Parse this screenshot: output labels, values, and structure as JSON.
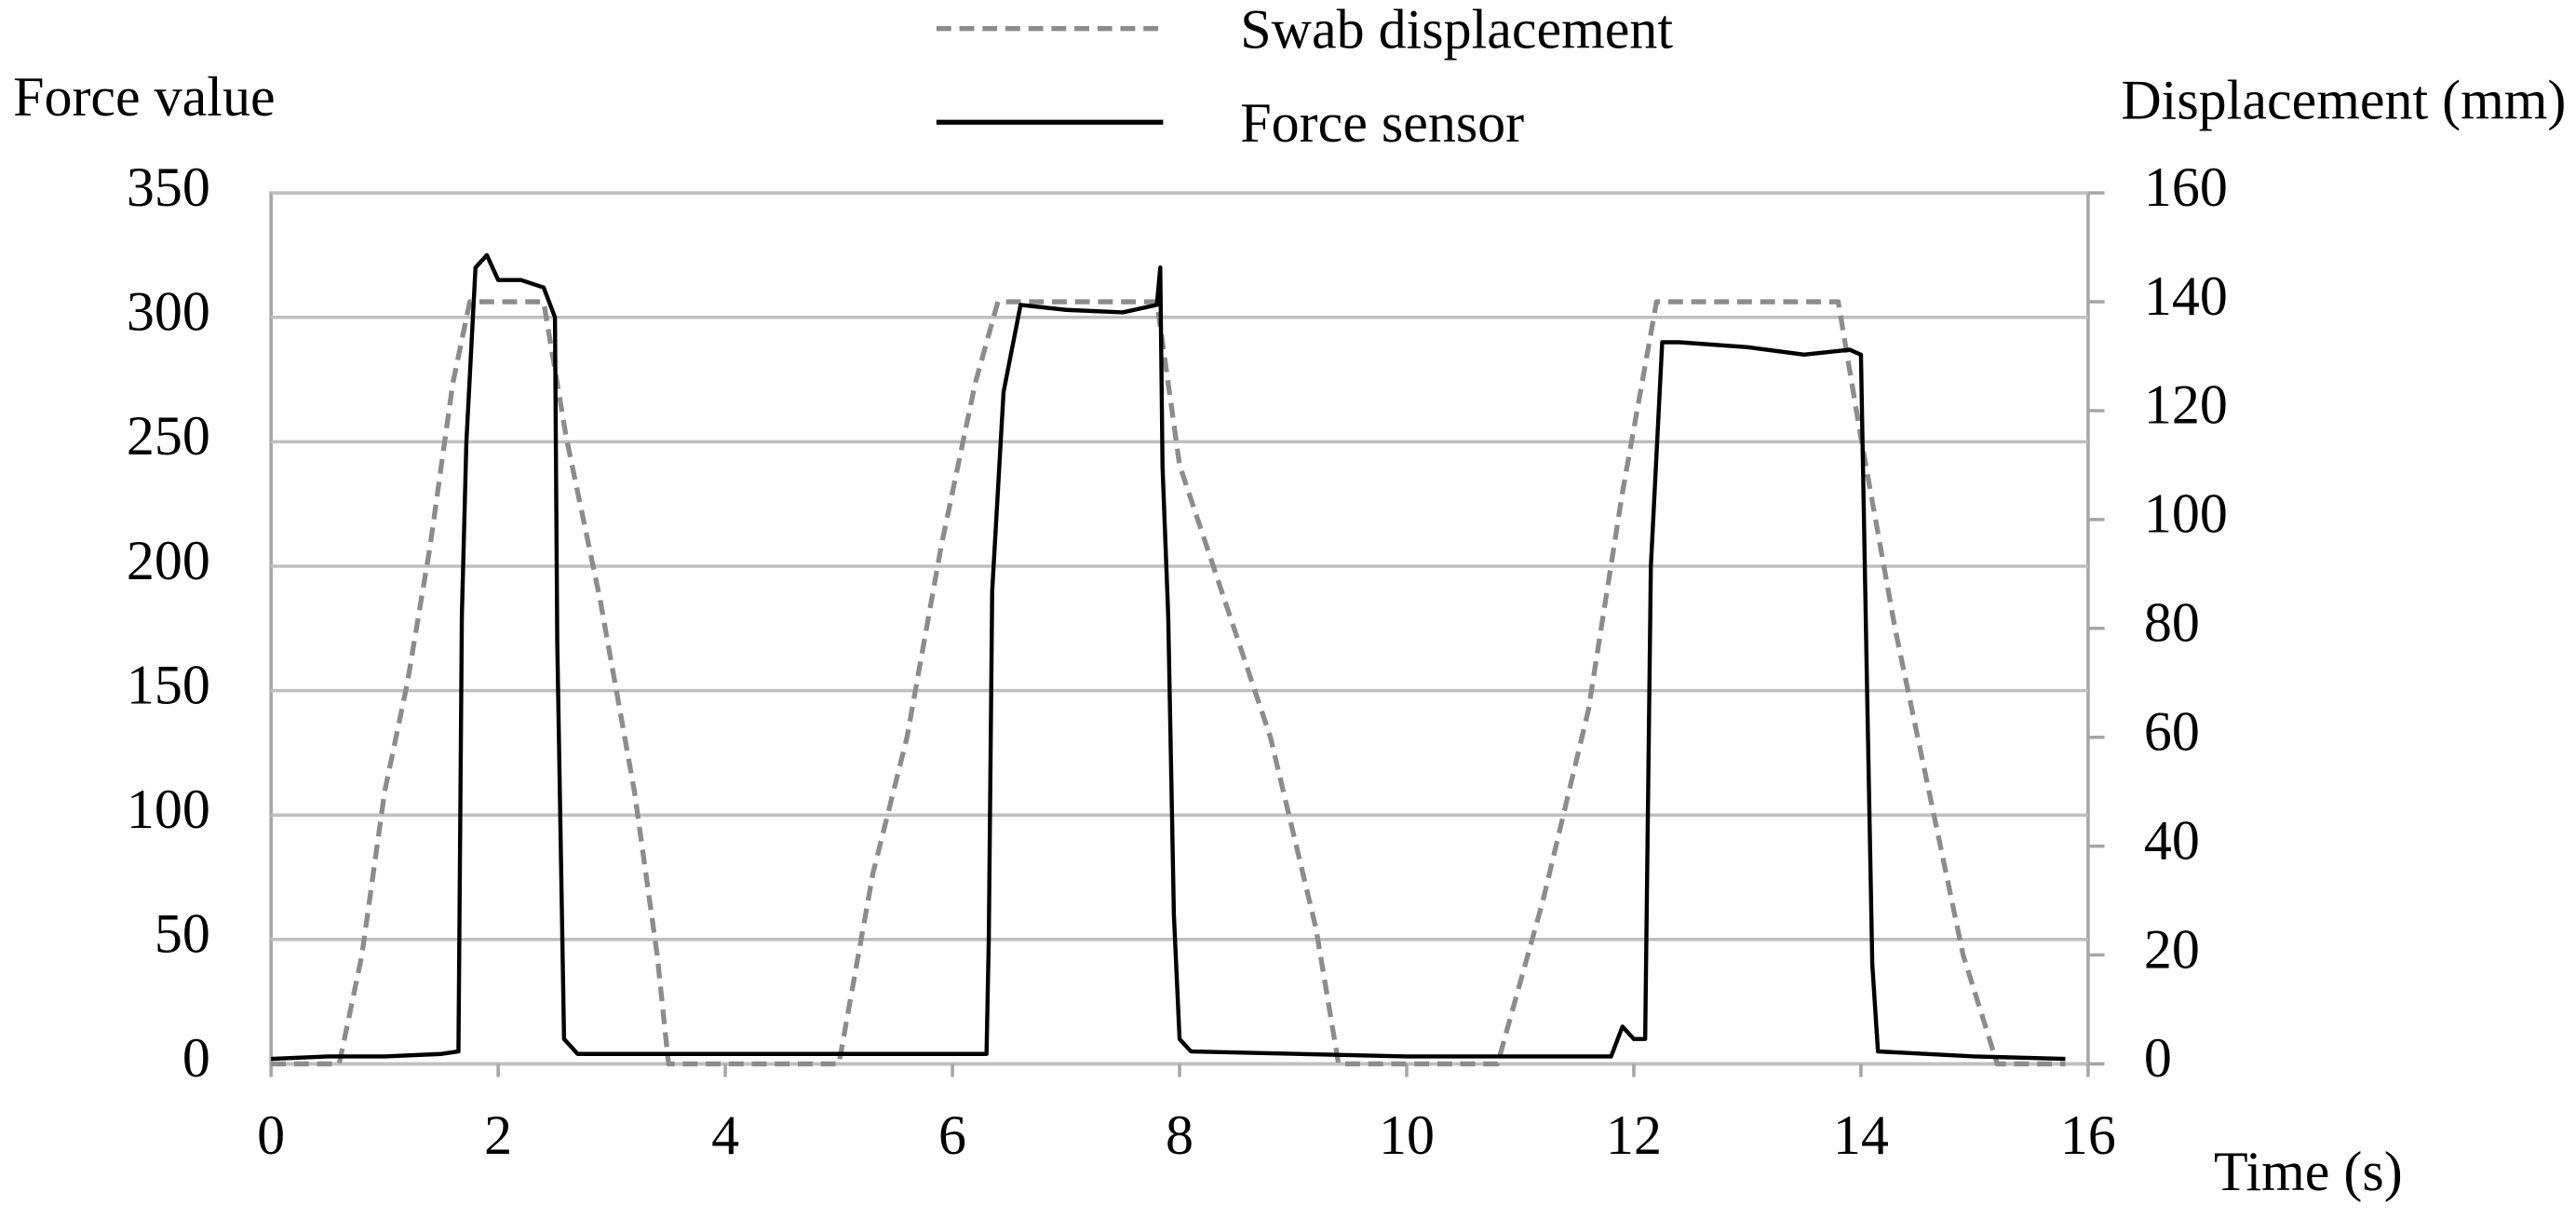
{
  "chart_data": {
    "type": "line",
    "x_label": "Time (s)",
    "y_label": "Force value",
    "y2_label": "Displacement (mm)",
    "xlim": [
      0,
      16
    ],
    "xticks": [
      0,
      2,
      4,
      6,
      8,
      10,
      12,
      14,
      16
    ],
    "ylim": [
      0,
      350
    ],
    "yticks": [
      0,
      50,
      100,
      150,
      200,
      250,
      300,
      350
    ],
    "y2lim": [
      0,
      160
    ],
    "y2ticks": [
      0,
      20,
      40,
      60,
      80,
      100,
      120,
      140,
      160
    ],
    "grid": true,
    "series": [
      {
        "name": "Swab displacement",
        "color": "#8c8c8c",
        "dashed": true,
        "axis": "y2",
        "x": [
          0,
          0.6,
          0.8,
          1.0,
          1.2,
          1.4,
          1.6,
          1.75,
          2.4,
          2.6,
          2.9,
          3.2,
          3.4,
          3.5,
          5.0,
          5.3,
          5.6,
          5.9,
          6.2,
          6.4,
          7.8,
          8.0,
          8.4,
          8.8,
          9.2,
          9.4,
          10.8,
          11.2,
          11.6,
          11.9,
          12.2,
          13.8,
          14.0,
          14.3,
          14.6,
          14.9,
          15.2,
          15.8
        ],
        "values": [
          0,
          0,
          20,
          50,
          70,
          95,
          125,
          140,
          140,
          115,
          85,
          50,
          20,
          0,
          0,
          35,
          60,
          95,
          125,
          140,
          140,
          110,
          85,
          60,
          25,
          0,
          0,
          30,
          65,
          105,
          140,
          140,
          115,
          80,
          50,
          20,
          0,
          0
        ]
      },
      {
        "name": "Force sensor",
        "color": "#000000",
        "dashed": false,
        "x": [
          0,
          0.5,
          1.0,
          1.5,
          1.65,
          1.68,
          1.72,
          1.8,
          1.9,
          2.0,
          2.2,
          2.4,
          2.5,
          2.52,
          2.55,
          2.58,
          2.7,
          4.0,
          5.5,
          6.3,
          6.32,
          6.35,
          6.45,
          6.6,
          7.0,
          7.5,
          7.8,
          7.83,
          7.85,
          7.9,
          7.95,
          8.0,
          8.1,
          10.0,
          11.8,
          11.9,
          12.0,
          12.1,
          12.15,
          12.25,
          12.4,
          13.0,
          13.5,
          13.9,
          14.0,
          14.05,
          14.1,
          14.15,
          15.0,
          15.8
        ],
        "values": [
          2,
          3,
          3,
          4,
          5,
          180,
          250,
          320,
          325,
          315,
          315,
          312,
          300,
          170,
          90,
          10,
          4,
          4,
          4,
          4,
          50,
          190,
          270,
          305,
          303,
          302,
          305,
          320,
          240,
          180,
          60,
          10,
          5,
          3,
          3,
          15,
          10,
          10,
          200,
          290,
          290,
          288,
          285,
          287,
          285,
          160,
          40,
          5,
          3,
          2
        ]
      }
    ]
  }
}
